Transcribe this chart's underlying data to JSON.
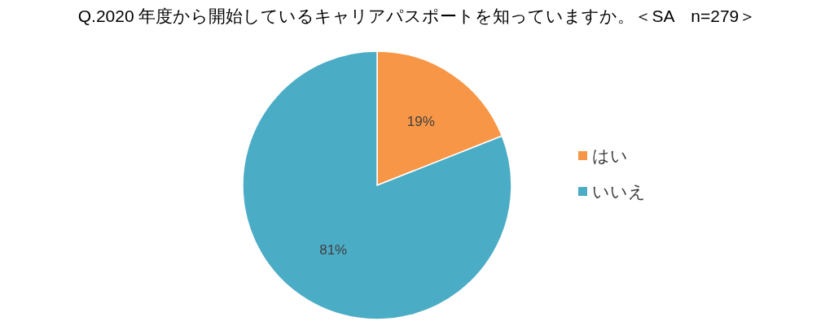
{
  "chart_data": {
    "type": "pie",
    "title": "Q.2020 年度から開始しているキャリアパスポートを知っていますか。＜SA　n=279＞",
    "categories": [
      "はい",
      "いいえ"
    ],
    "values": [
      19,
      81
    ],
    "colors": [
      "#f79646",
      "#4bacc6"
    ],
    "value_labels": [
      "19%",
      "81%"
    ],
    "legend": "right"
  }
}
